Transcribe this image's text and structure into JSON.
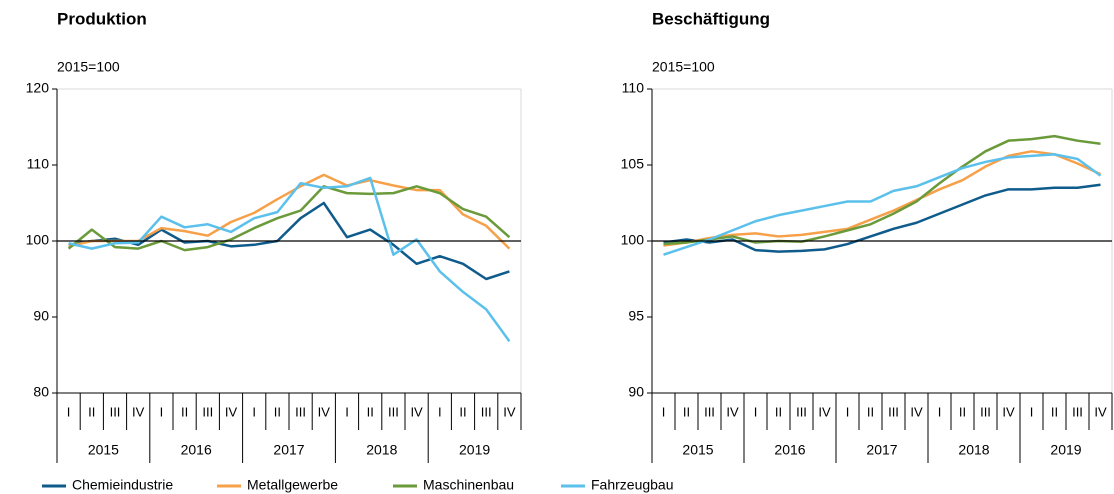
{
  "chart_data": [
    {
      "type": "line",
      "title": "Produktion",
      "unit_label": "2015=100",
      "categories": [
        "I",
        "II",
        "III",
        "IV",
        "I",
        "II",
        "III",
        "IV",
        "I",
        "II",
        "III",
        "IV",
        "I",
        "II",
        "III",
        "IV",
        "I",
        "II",
        "III",
        "IV"
      ],
      "groups": [
        "2015",
        "2016",
        "2017",
        "2018",
        "2019"
      ],
      "ylim": [
        80,
        120
      ],
      "yticks": [
        80,
        90,
        100,
        110,
        120
      ],
      "hline": 100,
      "series": [
        {
          "name": "Chemieindustrie",
          "color": "#0f5b8c",
          "values": [
            99.5,
            100,
            100.3,
            99.5,
            101.5,
            99.8,
            100,
            99.3,
            99.5,
            100,
            103,
            105,
            100.5,
            101.5,
            99.5,
            97,
            98,
            97,
            95,
            96
          ]
        },
        {
          "name": "Metallgewerbe",
          "color": "#f7a04a",
          "values": [
            99.3,
            100,
            100,
            100,
            101.7,
            101.3,
            100.7,
            102.5,
            103.7,
            105.5,
            107.2,
            108.7,
            107.3,
            108,
            107.3,
            106.7,
            106.7,
            103.5,
            102,
            99
          ]
        },
        {
          "name": "Maschinenbau",
          "color": "#6a9a3a",
          "values": [
            99,
            101.5,
            99.2,
            99,
            100,
            98.8,
            99.2,
            100.2,
            101.7,
            103,
            104,
            107.2,
            106.3,
            106.2,
            106.3,
            107.2,
            106.3,
            104.2,
            103.2,
            100.5
          ]
        },
        {
          "name": "Fahrzeugbau",
          "color": "#5bc0eb",
          "values": [
            99.7,
            99,
            99.7,
            99.8,
            103.2,
            101.8,
            102.2,
            101.2,
            103,
            103.8,
            107.6,
            107,
            107.2,
            108.3,
            98.2,
            100.2,
            96,
            93.3,
            91,
            86.8
          ]
        }
      ]
    },
    {
      "type": "line",
      "title": "Beschäftigung",
      "unit_label": "2015=100",
      "categories": [
        "I",
        "II",
        "III",
        "IV",
        "I",
        "II",
        "III",
        "IV",
        "I",
        "II",
        "III",
        "IV",
        "I",
        "II",
        "III",
        "IV",
        "I",
        "II",
        "III",
        "IV"
      ],
      "groups": [
        "2015",
        "2016",
        "2017",
        "2018",
        "2019"
      ],
      "ylim": [
        90,
        110
      ],
      "yticks": [
        90,
        95,
        100,
        105,
        110
      ],
      "hline": 100,
      "series": [
        {
          "name": "Chemieindustrie",
          "color": "#0f5b8c",
          "values": [
            99.9,
            100.1,
            99.9,
            100.1,
            99.4,
            99.3,
            99.35,
            99.45,
            99.8,
            100.3,
            100.8,
            101.2,
            101.8,
            102.4,
            103,
            103.4,
            103.4,
            103.5,
            103.5,
            103.7
          ]
        },
        {
          "name": "Metallgewerbe",
          "color": "#f7a04a",
          "values": [
            99.7,
            99.9,
            100.2,
            100.4,
            100.5,
            100.3,
            100.4,
            100.6,
            100.8,
            101.4,
            102,
            102.7,
            103.4,
            104,
            104.9,
            105.6,
            105.9,
            105.7,
            105.1,
            104.4
          ]
        },
        {
          "name": "Maschinenbau",
          "color": "#6a9a3a",
          "values": [
            99.8,
            99.9,
            100.1,
            100.3,
            99.9,
            100,
            99.95,
            100.3,
            100.7,
            101.1,
            101.8,
            102.6,
            103.8,
            104.9,
            105.9,
            106.6,
            106.7,
            106.9,
            106.6,
            106.4
          ]
        },
        {
          "name": "Fahrzeugbau",
          "color": "#5bc0eb",
          "values": [
            99.1,
            99.6,
            100.1,
            100.7,
            101.3,
            101.7,
            102,
            102.3,
            102.6,
            102.6,
            103.3,
            103.6,
            104.2,
            104.8,
            105.2,
            105.5,
            105.6,
            105.7,
            105.4,
            104.3
          ]
        }
      ]
    }
  ]
}
